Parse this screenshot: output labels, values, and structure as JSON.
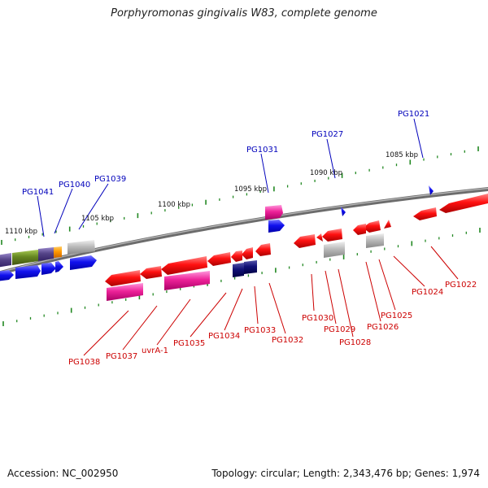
{
  "title": "Porphyromonas gingivalis W83, complete genome",
  "accession": "Accession: NC_002950",
  "summary": "Topology: circular; Length: 2,343,476 bp; Genes: 1,974",
  "colors": {
    "forward_label": "#0000bb",
    "reverse_label": "#cc0000",
    "tick": "#228822",
    "backbone": "#888888"
  },
  "kbp_labels": [
    "1085 kbp",
    "1090 kbp",
    "1095 kbp",
    "1100 kbp",
    "1105 kbp",
    "1110 kbp"
  ],
  "forward_genes": [
    "PG1021",
    "PG1027",
    "PG1031",
    "PG1039",
    "PG1040",
    "PG1041"
  ],
  "reverse_genes": [
    "PG1022",
    "PG1024",
    "PG1025",
    "PG1026",
    "PG1028",
    "PG1029",
    "PG1030",
    "PG1032",
    "PG1033",
    "PG1034",
    "PG1035",
    "uvrA-1",
    "PG1037",
    "PG1038"
  ]
}
